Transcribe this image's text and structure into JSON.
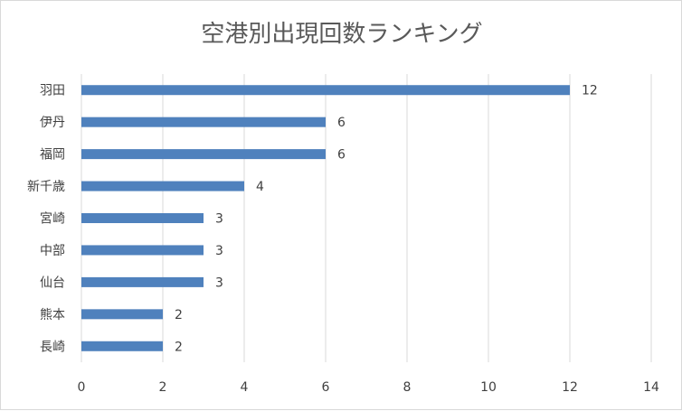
{
  "chart_data": {
    "type": "bar",
    "orientation": "horizontal",
    "title": "空港別出現回数ランキング",
    "categories": [
      "羽田",
      "伊丹",
      "福岡",
      "新千歳",
      "宮崎",
      "中部",
      "仙台",
      "熊本",
      "長崎"
    ],
    "values": [
      12,
      6,
      6,
      4,
      3,
      3,
      3,
      2,
      2
    ],
    "xlim": [
      0,
      14
    ],
    "xticks": [
      0,
      2,
      4,
      6,
      8,
      10,
      12,
      14
    ],
    "grid": true,
    "legend": "none",
    "data_labels": true,
    "bar_color": "#4f81bd",
    "grid_color": "#d9d9d9"
  }
}
